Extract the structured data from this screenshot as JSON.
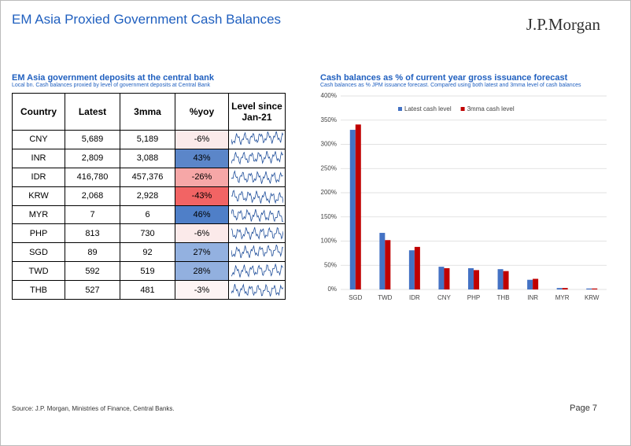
{
  "header": {
    "title": "EM Asia Proxied Government Cash Balances",
    "logo": "J.P.Morgan"
  },
  "table": {
    "title": "EM Asia government deposits at the central bank",
    "subtitle": "Local bn. Cash balances proxied by level of government deposits at Central Bank",
    "columns": [
      "Country",
      "Latest",
      "3mma",
      "%yoy",
      "Level since Jan-21"
    ],
    "rows": [
      [
        "CNY",
        "5,689",
        "5,189",
        "-6%"
      ],
      [
        "INR",
        "2,809",
        "3,088",
        "43%"
      ],
      [
        "IDR",
        "416,780",
        "457,376",
        "-26%"
      ],
      [
        "KRW",
        "2,068",
        "2,928",
        "-43%"
      ],
      [
        "MYR",
        "7",
        "6",
        "46%"
      ],
      [
        "PHP",
        "813",
        "730",
        "-6%"
      ],
      [
        "SGD",
        "89",
        "92",
        "27%"
      ],
      [
        "TWD",
        "592",
        "519",
        "28%"
      ],
      [
        "THB",
        "527",
        "481",
        "-3%"
      ]
    ],
    "yoy_colors": [
      "#fbeaea",
      "#5b86c9",
      "#f6a7a7",
      "#f26464",
      "#4f7fc8",
      "#fbeaea",
      "#93b1e0",
      "#92b0df",
      "#fdf4f4"
    ]
  },
  "chart_data": {
    "type": "bar",
    "title": "Cash balances as % of current year gross issuance forecast",
    "subtitle": "Cash balances as % JPM issuance forecast. Compared using both latest and 3mma level of cash balances",
    "categories": [
      "SGD",
      "TWD",
      "IDR",
      "CNY",
      "PHP",
      "THB",
      "INR",
      "MYR",
      "KRW"
    ],
    "series": [
      {
        "name": "Latest cash level",
        "color": "#4472c4",
        "values": [
          330,
          117,
          81,
          47,
          44,
          42,
          20,
          3,
          2
        ]
      },
      {
        "name": "3mma cash level",
        "color": "#c00000",
        "values": [
          341,
          102,
          88,
          44,
          40,
          38,
          22,
          3,
          2
        ]
      }
    ],
    "ylim": [
      0,
      400
    ],
    "yticks": [
      {
        "value": 0,
        "label": "0%"
      },
      {
        "value": 50,
        "label": "50%"
      },
      {
        "value": 100,
        "label": "100%"
      },
      {
        "value": 150,
        "label": "150%"
      },
      {
        "value": 200,
        "label": "200%"
      },
      {
        "value": 250,
        "label": "250%"
      },
      {
        "value": 300,
        "label": "300%"
      },
      {
        "value": 350,
        "label": "350%"
      },
      {
        "value": 400,
        "label": "400%"
      }
    ],
    "grid": true,
    "legend": "top"
  },
  "footer": {
    "source": "Source: J.P. Morgan, Ministries of Finance, Central Banks.",
    "page": "Page 7"
  }
}
